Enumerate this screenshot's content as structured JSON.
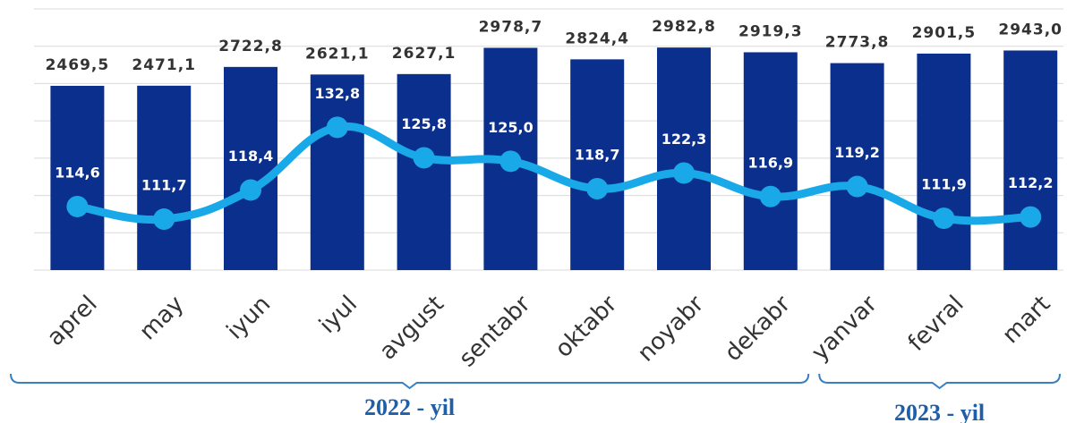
{
  "chart_data": {
    "type": "bar",
    "categories": [
      "aprel",
      "may",
      "iyun",
      "iyul",
      "avgust",
      "sentabr",
      "oktabr",
      "noyabr",
      "dekabr",
      "yanvar",
      "fevral",
      "mart"
    ],
    "series": [
      {
        "type": "bar",
        "color": "#0b2f8c",
        "values": [
          2469.5,
          2471.1,
          2722.8,
          2621.1,
          2627.1,
          2978.7,
          2824.4,
          2982.8,
          2919.3,
          2773.8,
          2901.5,
          2943.0
        ],
        "value_labels": [
          "2469,5",
          "2471,1",
          "2722,8",
          "2621,1",
          "2627,1",
          "2978,7",
          "2824,4",
          "2982,8",
          "2919,3",
          "2773,8",
          "2901,5",
          "2943,0"
        ]
      },
      {
        "type": "line",
        "axis": "y2",
        "color": "#1aa9e8",
        "values": [
          114.6,
          111.7,
          118.4,
          132.8,
          125.8,
          125.0,
          118.7,
          122.3,
          116.9,
          119.2,
          111.9,
          112.2
        ],
        "value_labels": [
          "114,6",
          "111,7",
          "118,4",
          "132,8",
          "125,8",
          "125,0",
          "118,7",
          "122,3",
          "116,9",
          "119,2",
          "111,9",
          "112,2"
        ]
      }
    ],
    "ylim": [
      0,
      3500
    ],
    "yticks": [
      0,
      500,
      1000,
      1500,
      2000,
      2500,
      3000,
      3500
    ],
    "y2lim": [
      100,
      160
    ],
    "grid": true,
    "groups": [
      {
        "label": "2022 - yil",
        "from": "aprel",
        "to": "dekabr"
      },
      {
        "label": "2023 - yil",
        "from": "yanvar",
        "to": "mart"
      }
    ]
  }
}
